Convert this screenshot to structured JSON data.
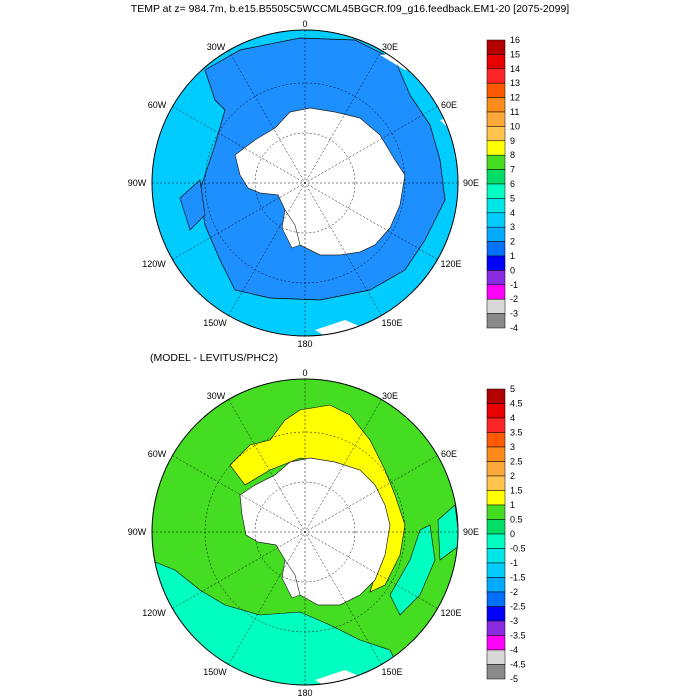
{
  "top_panel": {
    "title": "TEMP at z= 984.7m, b.e15.B5505C5WCCML45BGCR.f09_g16.feedback.EM1-20 [2075-2099]",
    "longitude_labels": [
      "0",
      "30E",
      "60E",
      "90E",
      "120E",
      "150E",
      "180",
      "150W",
      "120W",
      "90W",
      "60W",
      "30W"
    ],
    "colorbar": {
      "labels": [
        "16",
        "15",
        "14",
        "13",
        "12",
        "11",
        "10",
        "9",
        "8",
        "7",
        "6",
        "5",
        "4",
        "3",
        "2",
        "1",
        "0",
        "-1",
        "-2",
        "-3",
        "-4"
      ],
      "colors": [
        "#b30000",
        "#e60000",
        "#ff2626",
        "#ff5a00",
        "#ff8c1a",
        "#ffa83a",
        "#ffc44d",
        "#ffff00",
        "#44dd22",
        "#00dd66",
        "#00ffc0",
        "#00e5e5",
        "#00ccff",
        "#00aaff",
        "#0070ff",
        "#0000ff",
        "#8a2be2",
        "#ff00ff",
        "#d8d8d8",
        "#8a8a8a"
      ]
    }
  },
  "bottom_panel": {
    "title": "(MODEL - LEVITUS/PHC2)",
    "longitude_labels": [
      "0",
      "30E",
      "60E",
      "90E",
      "120E",
      "150E",
      "180",
      "150W",
      "120W",
      "90W",
      "60W",
      "30W"
    ],
    "colorbar": {
      "labels": [
        "5",
        "4.5",
        "4",
        "3.5",
        "3",
        "2.5",
        "2",
        "1.5",
        "1",
        "0.5",
        "0",
        "-0.5",
        "-1",
        "-1.5",
        "-2",
        "-2.5",
        "-3",
        "-3.5",
        "-4",
        "-4.5",
        "-5"
      ],
      "colors": [
        "#b30000",
        "#e60000",
        "#ff2626",
        "#ff5a00",
        "#ff8c1a",
        "#ffa83a",
        "#ffc44d",
        "#ffff00",
        "#44dd22",
        "#00dd66",
        "#00ffc0",
        "#00e5e5",
        "#00ccff",
        "#00aaff",
        "#0070ff",
        "#0000ff",
        "#8a2be2",
        "#ff00ff",
        "#d8d8d8",
        "#8a8a8a"
      ]
    }
  },
  "colors": {
    "land": "#ffffff",
    "top_outer_field": "#00ccff",
    "top_inner_field": "#1e8fff",
    "bottom_field": "#44dd22",
    "bottom_warm": "#ffff00",
    "bottom_cool": "#00ffc0"
  }
}
